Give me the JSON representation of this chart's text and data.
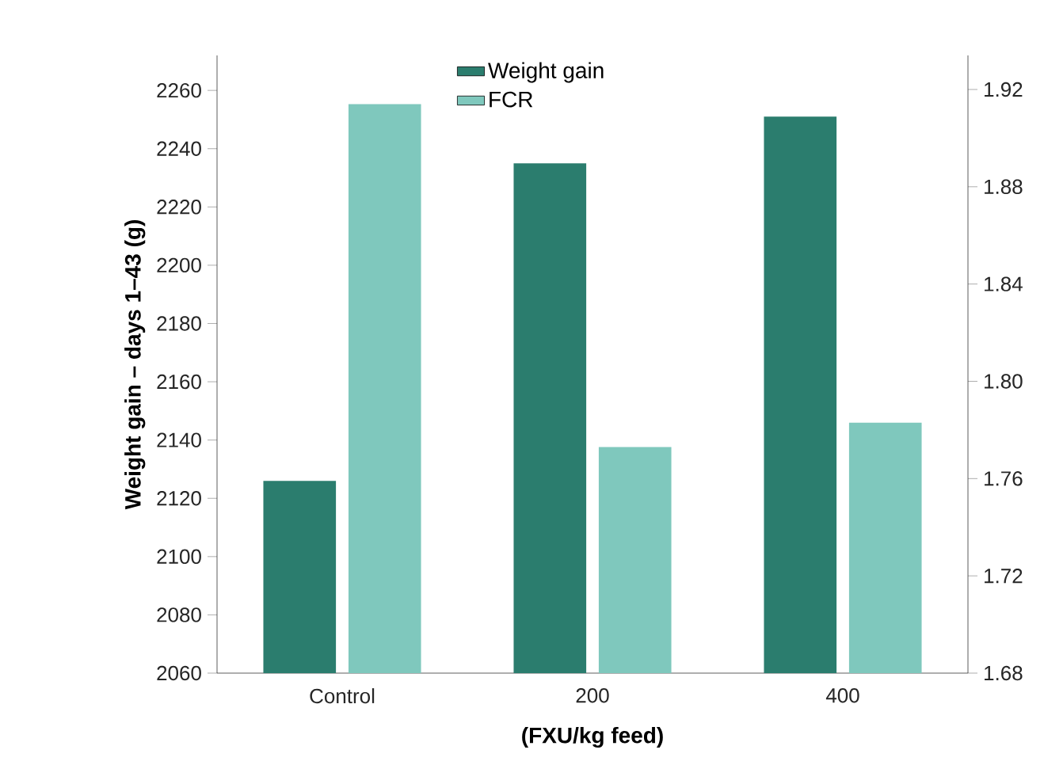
{
  "chart_data": {
    "type": "bar",
    "categories": [
      "Control",
      "200",
      "400"
    ],
    "series": [
      {
        "name": "Weight gain",
        "color": "#2b7d6e",
        "values": [
          2126,
          2235,
          2251
        ]
      },
      {
        "name": "FCR",
        "color": "#7fc8bd",
        "values": [
          1.914,
          1.773,
          1.783
        ],
        "axis": "y2"
      }
    ],
    "ylabel": "Weight gain – days 1–43 (g)",
    "xlabel": "(FXU/kg feed)",
    "ylim": [
      2060,
      2272
    ],
    "yticks": [
      2060,
      2080,
      2100,
      2120,
      2140,
      2160,
      2180,
      2200,
      2220,
      2240,
      2260
    ],
    "y2lim": [
      1.68,
      1.934
    ],
    "y2ticks": [
      1.68,
      1.72,
      1.76,
      {
        "value": 1.8,
        "label": "1.80"
      },
      1.84,
      1.88,
      1.92
    ],
    "legend": "top",
    "grid": false
  }
}
